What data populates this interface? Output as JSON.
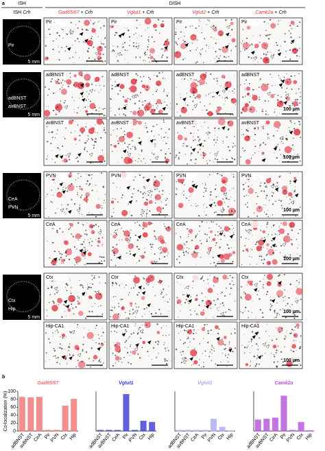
{
  "panel_a": {
    "label": "a",
    "ish_header": "ISH",
    "dish_header": "DISH",
    "columns": [
      {
        "gene": "ISH",
        "probe": "Crh"
      },
      {
        "gene": "Gad65/67",
        "joiner": "+",
        "probe": "Crh"
      },
      {
        "gene": "Vglut1",
        "joiner": "+",
        "probe": "Crh"
      },
      {
        "gene": "Vglut2",
        "joiner": "+",
        "probe": "Crh"
      },
      {
        "gene": "Camk2a",
        "joiner": "+",
        "probe": "Crh"
      }
    ],
    "rows": [
      "Pir",
      "adBNST",
      "avBNST",
      "PVN",
      "CeA",
      "Ctx",
      "Hip-CA1"
    ],
    "ish_images": [
      {
        "labels": [
          "Pir"
        ],
        "scale": "5 mm"
      },
      {
        "labels": [
          "adBNST",
          "avBNST"
        ],
        "scale": "5 mm"
      },
      {
        "labels": [
          "CeA",
          "PVN"
        ],
        "scale": "5 mm"
      },
      {
        "labels": [
          "Ctx",
          "Hip"
        ],
        "scale": "5 mm"
      }
    ],
    "scale_label": "100 µm"
  },
  "panel_b": {
    "label": "b"
  },
  "chart_data": [
    {
      "type": "bar",
      "title": "Gad65/67",
      "y_label": "Co-localization (%)",
      "categories": [
        "adBNST",
        "avBNST",
        "CeA",
        "Pir",
        "PVN",
        "Ctx",
        "Hip"
      ],
      "values": [
        85,
        84,
        85,
        2,
        2,
        63,
        80
      ],
      "color": "#f07272",
      "ylim": [
        0,
        100
      ],
      "yticks": [
        0,
        20,
        40,
        60,
        80,
        100
      ]
    },
    {
      "type": "bar",
      "title": "Vglut1",
      "categories": [
        "adBNST",
        "avBNST",
        "CeA",
        "Pir",
        "PVN",
        "Ctx",
        "Hip"
      ],
      "values": [
        2,
        2,
        2,
        92,
        2,
        25,
        22
      ],
      "color": "#3a3ad6",
      "ylim": [
        0,
        100
      ]
    },
    {
      "type": "bar",
      "title": "Vglut2",
      "categories": [
        "adBNST",
        "avBNST",
        "CeA",
        "Pir",
        "PVN",
        "Ctx",
        "Hip"
      ],
      "values": [
        2,
        2,
        2,
        2,
        30,
        10,
        1
      ],
      "color": "#a9a9f2",
      "ylim": [
        0,
        100
      ]
    },
    {
      "type": "bar",
      "title": "Camk2a",
      "categories": [
        "adBNST",
        "avBNST",
        "CeA",
        "Pir",
        "PVN",
        "Ctx",
        "Hip"
      ],
      "values": [
        28,
        30,
        33,
        88,
        2,
        22,
        1
      ],
      "color": "#b352d9",
      "ylim": [
        0,
        100
      ]
    }
  ]
}
